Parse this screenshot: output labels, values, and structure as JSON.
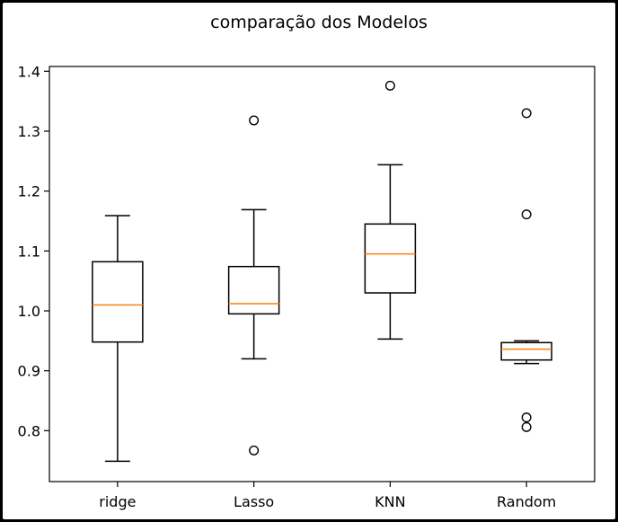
{
  "chart_data": {
    "type": "boxplot",
    "title": "comparação dos Modelos",
    "xlabel": "",
    "ylabel": "",
    "categories": [
      "ridge",
      "Lasso",
      "KNN",
      "Random"
    ],
    "ylim": [
      0.715,
      1.408
    ],
    "yticks": [
      0.8,
      0.9,
      1.0,
      1.1,
      1.2,
      1.3,
      1.4
    ],
    "ytick_labels": [
      "0.8",
      "0.9",
      "1.0",
      "1.1",
      "1.2",
      "1.3",
      "1.4"
    ],
    "grid": false,
    "box_color": "#000000",
    "median_color": "#ff7f0e",
    "boxes": [
      {
        "name": "ridge",
        "whisker_low": 0.749,
        "q1": 0.948,
        "median": 1.01,
        "q3": 1.082,
        "whisker_high": 1.159,
        "outliers": []
      },
      {
        "name": "Lasso",
        "whisker_low": 0.92,
        "q1": 0.995,
        "median": 1.012,
        "q3": 1.074,
        "whisker_high": 1.169,
        "outliers": [
          0.767,
          1.318
        ]
      },
      {
        "name": "KNN",
        "whisker_low": 0.953,
        "q1": 1.03,
        "median": 1.095,
        "q3": 1.145,
        "whisker_high": 1.244,
        "outliers": [
          1.376
        ]
      },
      {
        "name": "Random",
        "whisker_low": 0.912,
        "q1": 0.918,
        "median": 0.936,
        "q3": 0.947,
        "whisker_high": 0.95,
        "outliers": [
          0.806,
          0.822,
          1.161,
          1.33
        ]
      }
    ]
  }
}
